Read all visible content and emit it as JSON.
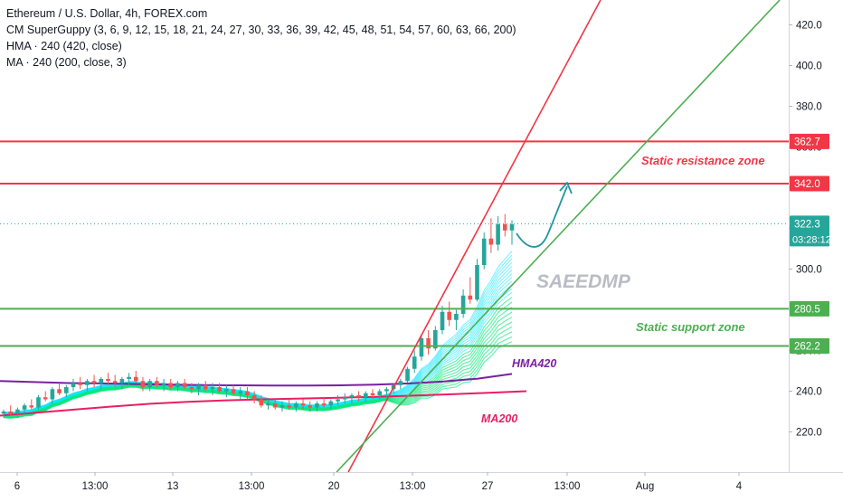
{
  "legend": {
    "symbol": "Ethereum / U.S. Dollar, 4h, FOREX.com",
    "indicator_1": "CM SuperGuppy (3, 6, 9, 12, 15, 18, 21, 24, 27, 30, 33, 36, 39, 42, 45, 48, 51, 54, 57, 60, 63, 66, 200)",
    "indicator_2": "HMA · 240 (420, close)",
    "indicator_3": "MA · 240 (200, close, 3)"
  },
  "chart_data": {
    "type": "candlestick",
    "y_axis": {
      "ticks": [
        220,
        240,
        260,
        280,
        300,
        320,
        340,
        360,
        380,
        400,
        420
      ],
      "ylim": [
        210,
        432
      ]
    },
    "x_axis": {
      "tick_labels": [
        "6",
        "13:00",
        "13",
        "13:00",
        "20",
        "13:00",
        "27",
        "13:00",
        "Aug",
        "4"
      ]
    },
    "current_price": {
      "price": 322.3,
      "price_label": "322.3",
      "countdown": "03:28:12"
    },
    "horizontal_levels": [
      {
        "price": 362.7,
        "label": "362.7",
        "color": "#f23645"
      },
      {
        "price": 342.0,
        "label": "342.0",
        "color": "#f23645"
      },
      {
        "price": 280.5,
        "label": "280.5",
        "color": "#4caf50"
      },
      {
        "price": 262.2,
        "label": "262.2",
        "color": "#4caf50"
      }
    ],
    "annotations": {
      "resistance": "Static resistance zone",
      "support": "Static support zone",
      "hma": "HMA420",
      "ma": "MA200",
      "watermark": "SAEEDMP"
    },
    "colors": {
      "up": "#26a69a",
      "down": "#ef5350",
      "resistance": "#f23645",
      "support": "#4caf50",
      "hma": "#7b1fa2",
      "ma": "#e91e63",
      "arrow": "#2196a3",
      "guppy_fast": "#00e5ff",
      "guppy_slow": "#00e676"
    },
    "candles": [
      [
        229,
        231,
        227,
        230
      ],
      [
        230,
        233,
        228,
        229
      ],
      [
        229,
        232,
        227,
        231
      ],
      [
        231,
        234,
        229,
        233
      ],
      [
        233,
        236,
        231,
        232
      ],
      [
        232,
        238,
        231,
        237
      ],
      [
        237,
        240,
        235,
        236
      ],
      [
        236,
        242,
        234,
        241
      ],
      [
        241,
        244,
        238,
        239
      ],
      [
        239,
        243,
        237,
        242
      ],
      [
        242,
        246,
        240,
        244
      ],
      [
        244,
        247,
        241,
        243
      ],
      [
        243,
        246,
        240,
        245
      ],
      [
        245,
        248,
        242,
        244
      ],
      [
        244,
        247,
        241,
        246
      ],
      [
        246,
        249,
        243,
        245
      ],
      [
        245,
        248,
        242,
        244
      ],
      [
        244,
        247,
        241,
        246
      ],
      [
        246,
        249,
        243,
        247
      ],
      [
        247,
        250,
        244,
        245
      ],
      [
        245,
        247,
        240,
        242
      ],
      [
        242,
        246,
        240,
        245
      ],
      [
        245,
        247,
        242,
        243
      ],
      [
        243,
        246,
        240,
        244
      ],
      [
        244,
        246,
        241,
        242
      ],
      [
        242,
        245,
        240,
        244
      ],
      [
        244,
        246,
        241,
        242
      ],
      [
        242,
        244,
        239,
        241
      ],
      [
        241,
        244,
        238,
        243
      ],
      [
        243,
        245,
        240,
        241
      ],
      [
        241,
        244,
        238,
        242
      ],
      [
        242,
        244,
        239,
        240
      ],
      [
        240,
        243,
        237,
        241
      ],
      [
        241,
        243,
        238,
        239
      ],
      [
        239,
        242,
        236,
        240
      ],
      [
        240,
        242,
        236,
        238
      ],
      [
        238,
        240,
        234,
        236
      ],
      [
        236,
        238,
        232,
        233
      ],
      [
        233,
        236,
        231,
        234
      ],
      [
        234,
        236,
        231,
        232
      ],
      [
        232,
        235,
        230,
        233
      ],
      [
        233,
        236,
        231,
        232
      ],
      [
        232,
        235,
        230,
        234
      ],
      [
        234,
        236,
        231,
        233
      ],
      [
        233,
        235,
        230,
        232
      ],
      [
        232,
        235,
        230,
        234
      ],
      [
        234,
        237,
        232,
        233
      ],
      [
        233,
        236,
        231,
        235
      ],
      [
        235,
        238,
        233,
        236
      ],
      [
        236,
        239,
        234,
        237
      ],
      [
        237,
        239,
        234,
        238
      ],
      [
        238,
        240,
        235,
        237
      ],
      [
        237,
        240,
        235,
        239
      ],
      [
        239,
        241,
        236,
        238
      ],
      [
        238,
        241,
        236,
        240
      ],
      [
        240,
        242,
        237,
        241
      ],
      [
        241,
        244,
        239,
        243
      ],
      [
        243,
        246,
        241,
        245
      ],
      [
        245,
        252,
        244,
        251
      ],
      [
        251,
        260,
        249,
        257
      ],
      [
        257,
        268,
        255,
        266
      ],
      [
        266,
        270,
        258,
        261
      ],
      [
        261,
        272,
        260,
        270
      ],
      [
        270,
        282,
        268,
        279
      ],
      [
        279,
        284,
        272,
        275
      ],
      [
        275,
        280,
        270,
        278
      ],
      [
        278,
        290,
        276,
        287
      ],
      [
        287,
        296,
        283,
        285
      ],
      [
        285,
        305,
        284,
        302
      ],
      [
        302,
        318,
        300,
        315
      ],
      [
        315,
        325,
        308,
        312
      ],
      [
        312,
        326,
        309,
        322
      ],
      [
        322,
        327,
        316,
        319
      ],
      [
        319,
        324,
        312,
        322
      ]
    ],
    "guppy_fast_offsets": [
      1.5,
      3,
      4.5,
      6,
      7.5,
      9,
      10.5,
      12,
      13.5,
      15,
      16.5,
      18
    ],
    "guppy_slow_offsets": [
      20,
      22,
      24,
      26,
      28,
      30,
      32,
      34,
      36,
      38
    ],
    "hma_series": [
      245,
      244.5,
      244,
      243.8,
      243.5,
      243.2,
      243,
      242.9,
      242.8,
      242.8,
      242.9,
      243.2,
      243.8,
      244.8,
      246.2,
      248.5
    ],
    "ma_series": [
      228,
      229.5,
      231,
      232.5,
      233.8,
      234.8,
      235.5,
      236,
      236.4,
      236.8,
      237.2,
      237.8,
      238.5,
      239.2,
      240
    ]
  }
}
